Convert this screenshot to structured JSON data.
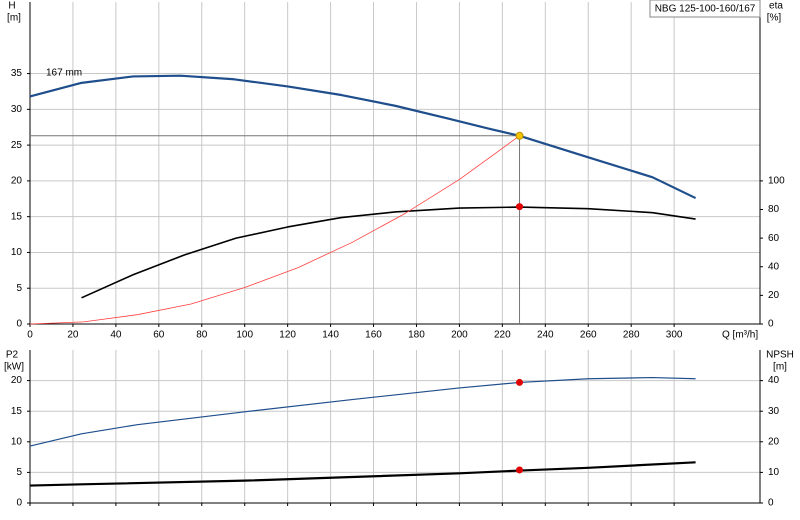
{
  "chart_data": [
    {
      "type": "line",
      "model": "NBG 125-100-160/167",
      "ylabel": "H",
      "yunit": "[m]",
      "y2label": "eta",
      "y2unit": "[%]",
      "xlabel": "Q [m³/h]",
      "annotation": "167 mm",
      "xlim": [
        0,
        340
      ],
      "xticks": [
        0,
        20,
        40,
        60,
        80,
        100,
        120,
        140,
        160,
        180,
        200,
        220,
        240,
        260,
        280,
        300
      ],
      "ylim": [
        0,
        45
      ],
      "yticks": [
        0,
        5,
        10,
        15,
        20,
        25,
        30,
        35
      ],
      "y2lim": [
        0,
        225
      ],
      "y2ticks": [
        0,
        20,
        40,
        60,
        80,
        100
      ],
      "grid": true,
      "series": [
        {
          "color": "#1f4e8c",
          "linewidth": 2.2,
          "x": [
            0,
            24,
            48,
            70,
            95,
            120,
            145,
            170,
            195,
            215,
            228,
            260,
            290,
            310
          ],
          "values": [
            31.8,
            33.7,
            34.6,
            34.7,
            34.2,
            33.2,
            32,
            30.5,
            28.7,
            27.2,
            26.3,
            23.3,
            20.5,
            17.6
          ]
        },
        {
          "color": "#000000",
          "linewidth": 1.6,
          "axis": "y2",
          "x": [
            24,
            48,
            72,
            96,
            120,
            145,
            170,
            200,
            228,
            260,
            290,
            310
          ],
          "values": [
            18.3,
            34.4,
            48.3,
            60,
            67.8,
            74.4,
            78.3,
            81,
            81.7,
            80.6,
            77.8,
            73.3
          ]
        },
        {
          "color": "#ff4040",
          "linewidth": 0.8,
          "x": [
            0,
            25,
            50,
            75,
            100,
            125,
            150,
            175,
            200,
            228
          ],
          "values": [
            0,
            0.3,
            1.3,
            2.8,
            5.1,
            7.9,
            11.4,
            15.5,
            20.2,
            26.3
          ]
        }
      ],
      "points": [
        {
          "x": 228,
          "y": 26.3,
          "color": "#f5c400",
          "reference": true
        },
        {
          "x": 228,
          "y": 82,
          "color": "#e00000",
          "axis": "y2"
        }
      ]
    },
    {
      "type": "line",
      "ylabel": "P2",
      "yunit": "[kW]",
      "y2label": "NPSH",
      "y2unit": "[m]",
      "xlim": [
        0,
        340
      ],
      "xticks": [
        0,
        20,
        40,
        60,
        80,
        100,
        120,
        140,
        160,
        180,
        200,
        220,
        240,
        260,
        280,
        300
      ],
      "ylim": [
        0,
        25
      ],
      "yticks": [
        0,
        5,
        10,
        15,
        20
      ],
      "y2lim": [
        0,
        50
      ],
      "y2ticks": [
        0,
        10,
        20,
        30,
        40
      ],
      "grid": true,
      "series": [
        {
          "color": "#1f4e8c",
          "linewidth": 1.2,
          "x": [
            0,
            24,
            50,
            100,
            150,
            200,
            228,
            260,
            290,
            310
          ],
          "values": [
            9.3,
            11.3,
            12.8,
            14.9,
            16.9,
            18.8,
            19.7,
            20.3,
            20.5,
            20.3
          ]
        },
        {
          "color": "#000000",
          "linewidth": 2.2,
          "axis": "y2",
          "x": [
            0,
            24,
            100,
            150,
            200,
            228,
            260,
            310
          ],
          "values": [
            5.7,
            6.1,
            7.3,
            8.5,
            9.7,
            10.6,
            11.5,
            13.3
          ]
        }
      ],
      "points": [
        {
          "x": 228,
          "y": 19.7,
          "color": "#e00000"
        },
        {
          "x": 228,
          "y": 10.8,
          "color": "#e00000",
          "axis": "y2"
        }
      ]
    }
  ]
}
